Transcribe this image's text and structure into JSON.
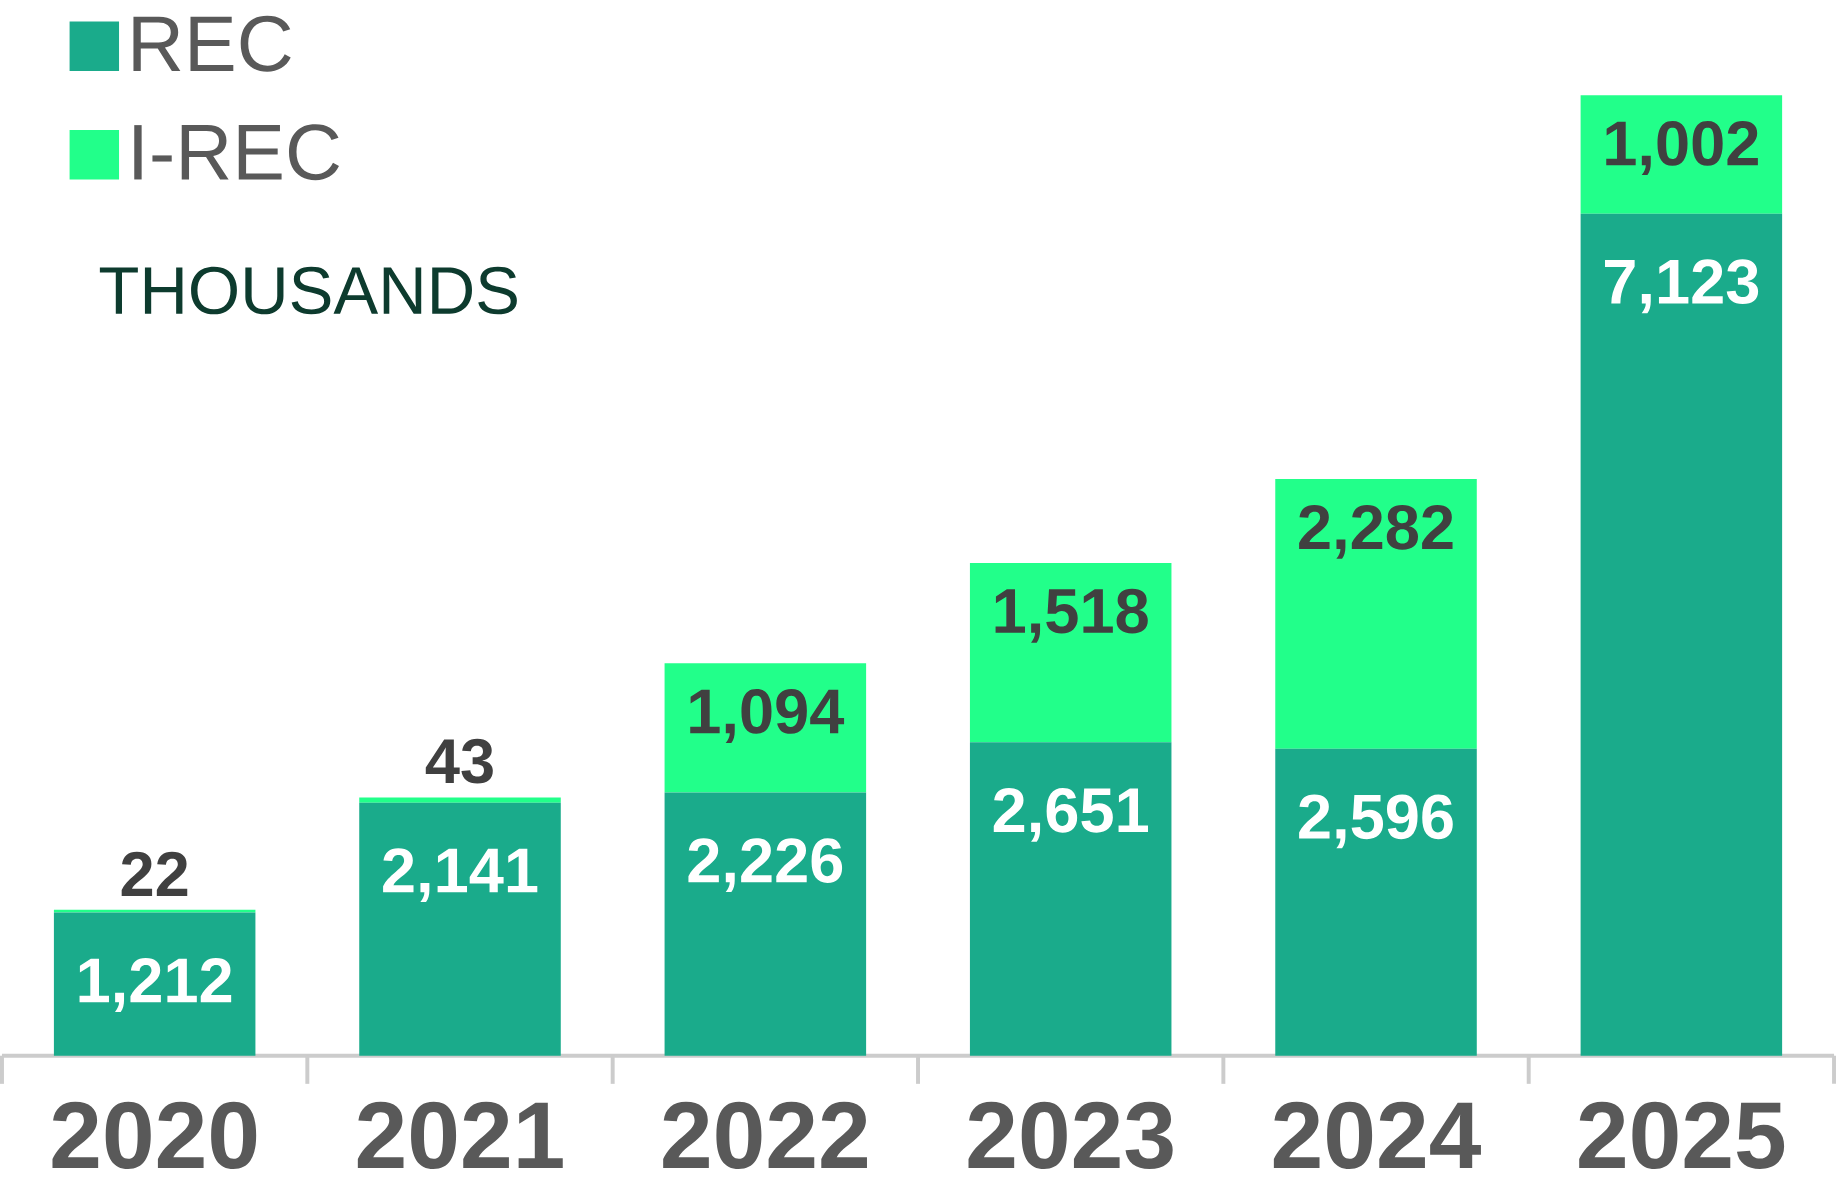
{
  "chart_data": {
    "type": "bar",
    "stacked": true,
    "categories": [
      "2020",
      "2021",
      "2022",
      "2023",
      "2024",
      "2025"
    ],
    "series": [
      {
        "name": "REC",
        "color": "#1aab8b",
        "values": [
          1212,
          2141,
          2226,
          2651,
          2596,
          7123
        ],
        "value_labels": [
          "1,212",
          "2,141",
          "2,226",
          "2,651",
          "2,596",
          "7,123"
        ]
      },
      {
        "name": "I-REC",
        "color": "#22ff8a",
        "values": [
          22,
          43,
          1094,
          1518,
          2282,
          1002
        ],
        "value_labels": [
          "22",
          "43",
          "1,094",
          "1,518",
          "2,282",
          "1,002"
        ]
      }
    ],
    "legend": "top left",
    "annotations": [
      "THOUSANDS"
    ]
  }
}
